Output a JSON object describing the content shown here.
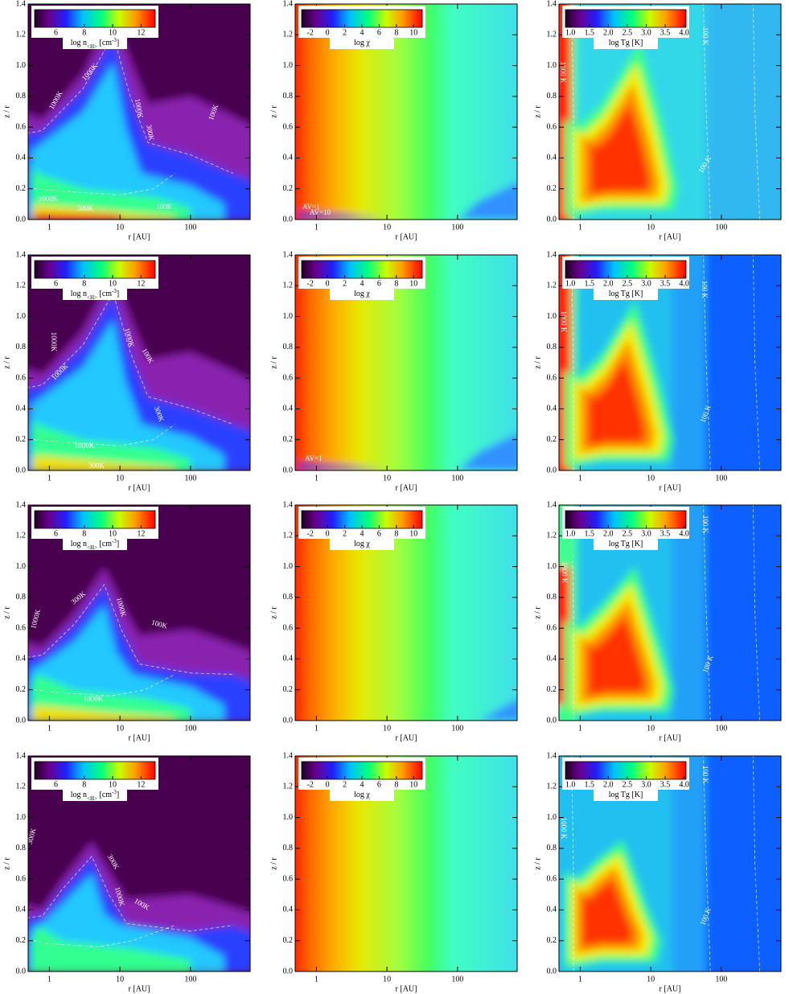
{
  "chart_data": [
    {
      "type": "contour",
      "xlabel": "r [AU]",
      "ylabel": "z / r",
      "xscale": "log",
      "xlim": [
        0.5,
        700
      ],
      "ylim": [
        0,
        1.4
      ],
      "xticks": [
        1,
        10,
        100
      ],
      "yticks": [
        {
          "value": 0,
          "label": "0.0"
        },
        0.2,
        0.4,
        0.6,
        0.8,
        {
          "value": 1,
          "label": "1.0"
        },
        1.2,
        1.4
      ],
      "colorbar": {
        "label": [
          {
            "text": "log n"
          },
          {
            "text": "<H>",
            "style": "sub"
          },
          {
            "text": " [cm"
          },
          {
            "text": "-3",
            "style": "sup"
          },
          {
            "text": "]"
          }
        ],
        "lim": [
          4.5,
          13
        ],
        "ticks": [
          6,
          8,
          10,
          12
        ]
      },
      "annotations": [
        "1000K",
        "1000K",
        "1000K",
        "300K",
        "100K",
        "1000K",
        "300K",
        "100K"
      ]
    },
    {
      "type": "contour",
      "xlabel": "r [AU]",
      "ylabel": "z / r",
      "xscale": "log",
      "xlim": [
        0.5,
        700
      ],
      "ylim": [
        0,
        1.4
      ],
      "xticks": [
        1,
        10,
        100
      ],
      "yticks": [
        {
          "value": 0,
          "label": "0.0"
        },
        0.2,
        0.4,
        0.6,
        0.8,
        {
          "value": 1,
          "label": "1.0"
        },
        1.2,
        1.4
      ],
      "colorbar": {
        "label": [
          {
            "text": "log χ"
          }
        ],
        "lim": [
          -3,
          11
        ],
        "ticks": [
          -2,
          0,
          2,
          4,
          6,
          8,
          10
        ]
      },
      "annotations": [
        "AV=1",
        "AV=10"
      ]
    },
    {
      "type": "contour",
      "xlabel": "r [AU]",
      "ylabel": "z / r",
      "xscale": "log",
      "xlim": [
        0.5,
        700
      ],
      "ylim": [
        0,
        1.4
      ],
      "xticks": [
        1,
        10,
        100
      ],
      "yticks": [
        {
          "value": 0,
          "label": "0.0"
        },
        0.2,
        0.4,
        0.6,
        0.8,
        {
          "value": 1,
          "label": "1.0"
        },
        1.2,
        1.4
      ],
      "colorbar": {
        "label": [
          {
            "text": "log Tg [K]"
          }
        ],
        "lim": [
          0.87,
          4.05
        ],
        "ticks": [
          {
            "value": 1,
            "label": "1.0"
          },
          1.5,
          {
            "value": 2,
            "label": "2.0"
          },
          2.5,
          {
            "value": 3,
            "label": "3.0"
          },
          3.5,
          {
            "value": 4,
            "label": "4.0"
          }
        ]
      },
      "annotations": [
        "1000 K",
        "100 K",
        "100 K"
      ]
    },
    {
      "type": "contour",
      "xlabel": "r [AU]",
      "ylabel": "z / r",
      "xscale": "log",
      "xlim": [
        0.5,
        700
      ],
      "ylim": [
        0,
        1.4
      ],
      "xticks": [
        1,
        10,
        100
      ],
      "yticks": [
        {
          "value": 0,
          "label": "0.0"
        },
        0.2,
        0.4,
        0.6,
        0.8,
        {
          "value": 1,
          "label": "1.0"
        },
        1.2,
        1.4
      ],
      "colorbar": {
        "label": [
          {
            "text": "log n"
          },
          {
            "text": "<H>",
            "style": "sub"
          },
          {
            "text": " [cm"
          },
          {
            "text": "-3",
            "style": "sup"
          },
          {
            "text": "]"
          }
        ],
        "lim": [
          4.5,
          13
        ],
        "ticks": [
          6,
          8,
          10,
          12
        ]
      },
      "annotations": [
        "1000K",
        "1000K",
        "1000K",
        "100K",
        "300K",
        "1000K",
        "300K"
      ]
    },
    {
      "type": "contour",
      "xlabel": "r [AU]",
      "ylabel": "z / r",
      "xscale": "log",
      "xlim": [
        0.5,
        700
      ],
      "ylim": [
        0,
        1.4
      ],
      "xticks": [
        1,
        10,
        100
      ],
      "yticks": [
        {
          "value": 0,
          "label": "0.0"
        },
        0.2,
        0.4,
        0.6,
        0.8,
        {
          "value": 1,
          "label": "1.0"
        },
        1.2,
        1.4
      ],
      "colorbar": {
        "label": [
          {
            "text": "log χ"
          }
        ],
        "lim": [
          -3,
          11
        ],
        "ticks": [
          -2,
          0,
          2,
          4,
          6,
          8,
          10
        ]
      },
      "annotations": [
        "AV=1"
      ]
    },
    {
      "type": "contour",
      "xlabel": "r [AU]",
      "ylabel": "z / r",
      "xscale": "log",
      "xlim": [
        0.5,
        700
      ],
      "ylim": [
        0,
        1.4
      ],
      "xticks": [
        1,
        10,
        100
      ],
      "yticks": [
        {
          "value": 0,
          "label": "0.0"
        },
        0.2,
        0.4,
        0.6,
        0.8,
        {
          "value": 1,
          "label": "1.0"
        },
        1.2,
        1.4
      ],
      "colorbar": {
        "label": [
          {
            "text": "log Tg [K]"
          }
        ],
        "lim": [
          0.87,
          4.05
        ],
        "ticks": [
          {
            "value": 1,
            "label": "1.0"
          },
          1.5,
          {
            "value": 2,
            "label": "2.0"
          },
          2.5,
          {
            "value": 3,
            "label": "3.0"
          },
          3.5,
          {
            "value": 4,
            "label": "4.0"
          }
        ]
      },
      "annotations": [
        "1000 K",
        "100 K",
        "100 K"
      ]
    },
    {
      "type": "contour",
      "xlabel": "r [AU]",
      "ylabel": "z / r",
      "xscale": "log",
      "xlim": [
        0.5,
        700
      ],
      "ylim": [
        0,
        1.4
      ],
      "xticks": [
        1,
        10,
        100
      ],
      "yticks": [
        {
          "value": 0,
          "label": "0.0"
        },
        0.2,
        0.4,
        0.6,
        0.8,
        {
          "value": 1,
          "label": "1.0"
        },
        1.2,
        1.4
      ],
      "colorbar": {
        "label": [
          {
            "text": "log n"
          },
          {
            "text": "<H>",
            "style": "sub"
          },
          {
            "text": " [cm"
          },
          {
            "text": "-3",
            "style": "sup"
          },
          {
            "text": "]"
          }
        ],
        "lim": [
          4.5,
          13
        ],
        "ticks": [
          6,
          8,
          10,
          12
        ]
      },
      "annotations": [
        "1000K",
        "300K",
        "1000K",
        "100K",
        "1000K"
      ]
    },
    {
      "type": "contour",
      "xlabel": "r [AU]",
      "ylabel": "z / r",
      "xscale": "log",
      "xlim": [
        0.5,
        700
      ],
      "ylim": [
        0,
        1.4
      ],
      "xticks": [
        1,
        10,
        100
      ],
      "yticks": [
        {
          "value": 0,
          "label": "0.0"
        },
        0.2,
        0.4,
        0.6,
        0.8,
        {
          "value": 1,
          "label": "1.0"
        },
        1.2,
        1.4
      ],
      "colorbar": {
        "label": [
          {
            "text": "log χ"
          }
        ],
        "lim": [
          -3,
          11
        ],
        "ticks": [
          -2,
          0,
          2,
          4,
          6,
          8,
          10
        ]
      },
      "annotations": []
    },
    {
      "type": "contour",
      "xlabel": "r [AU]",
      "ylabel": "z / r",
      "xscale": "log",
      "xlim": [
        0.5,
        700
      ],
      "ylim": [
        0,
        1.4
      ],
      "xticks": [
        1,
        10,
        100
      ],
      "yticks": [
        {
          "value": 0,
          "label": "0.0"
        },
        0.2,
        0.4,
        0.6,
        0.8,
        {
          "value": 1,
          "label": "1.0"
        },
        1.2,
        1.4
      ],
      "colorbar": {
        "label": [
          {
            "text": "log Tg [K]"
          }
        ],
        "lim": [
          0.87,
          4.05
        ],
        "ticks": [
          {
            "value": 1,
            "label": "1.0"
          },
          1.5,
          {
            "value": 2,
            "label": "2.0"
          },
          2.5,
          {
            "value": 3,
            "label": "3.0"
          },
          3.5,
          {
            "value": 4,
            "label": "4.0"
          }
        ]
      },
      "annotations": [
        "1000 K",
        "100 K",
        "100 K"
      ]
    },
    {
      "type": "contour",
      "xlabel": "r [AU]",
      "ylabel": "z / r",
      "xscale": "log",
      "xlim": [
        0.5,
        700
      ],
      "ylim": [
        0,
        1.4
      ],
      "xticks": [
        1,
        10,
        100
      ],
      "yticks": [
        {
          "value": 0,
          "label": "0.0"
        },
        0.2,
        0.4,
        0.6,
        0.8,
        {
          "value": 1,
          "label": "1.0"
        },
        1.2,
        1.4
      ],
      "colorbar": {
        "label": [
          {
            "text": "log n"
          },
          {
            "text": "<H>",
            "style": "sub"
          },
          {
            "text": " [cm"
          },
          {
            "text": "-3",
            "style": "sup"
          },
          {
            "text": "]"
          }
        ],
        "lim": [
          4.5,
          13
        ],
        "ticks": [
          6,
          8,
          10,
          12
        ]
      },
      "annotations": [
        "300K",
        "300K",
        "1000K",
        "100K"
      ]
    },
    {
      "type": "contour",
      "xlabel": "r [AU]",
      "ylabel": "z / r",
      "xscale": "log",
      "xlim": [
        0.5,
        700
      ],
      "ylim": [
        0,
        1.4
      ],
      "xticks": [
        1,
        10,
        100
      ],
      "yticks": [
        {
          "value": 0,
          "label": "0.0"
        },
        0.2,
        0.4,
        0.6,
        0.8,
        {
          "value": 1,
          "label": "1.0"
        },
        1.2,
        1.4
      ],
      "colorbar": {
        "label": [
          {
            "text": "log χ"
          }
        ],
        "lim": [
          -3,
          11
        ],
        "ticks": [
          -2,
          0,
          2,
          4,
          6,
          8,
          10
        ]
      },
      "annotations": []
    },
    {
      "type": "contour",
      "xlabel": "r [AU]",
      "ylabel": "z / r",
      "xscale": "log",
      "xlim": [
        0.5,
        700
      ],
      "ylim": [
        0,
        1.4
      ],
      "xticks": [
        1,
        10,
        100
      ],
      "yticks": [
        {
          "value": 0,
          "label": "0.0"
        },
        0.2,
        0.4,
        0.6,
        0.8,
        {
          "value": 1,
          "label": "1.0"
        },
        1.2,
        1.4
      ],
      "colorbar": {
        "label": [
          {
            "text": "log Tg [K]"
          }
        ],
        "lim": [
          0.87,
          4.05
        ],
        "ticks": [
          {
            "value": 1,
            "label": "1.0"
          },
          1.5,
          {
            "value": 2,
            "label": "2.0"
          },
          2.5,
          {
            "value": 3,
            "label": "3.0"
          },
          3.5,
          {
            "value": 4,
            "label": "4.0"
          }
        ]
      },
      "annotations": [
        "1000 K",
        "100 K",
        "100 K"
      ]
    }
  ]
}
